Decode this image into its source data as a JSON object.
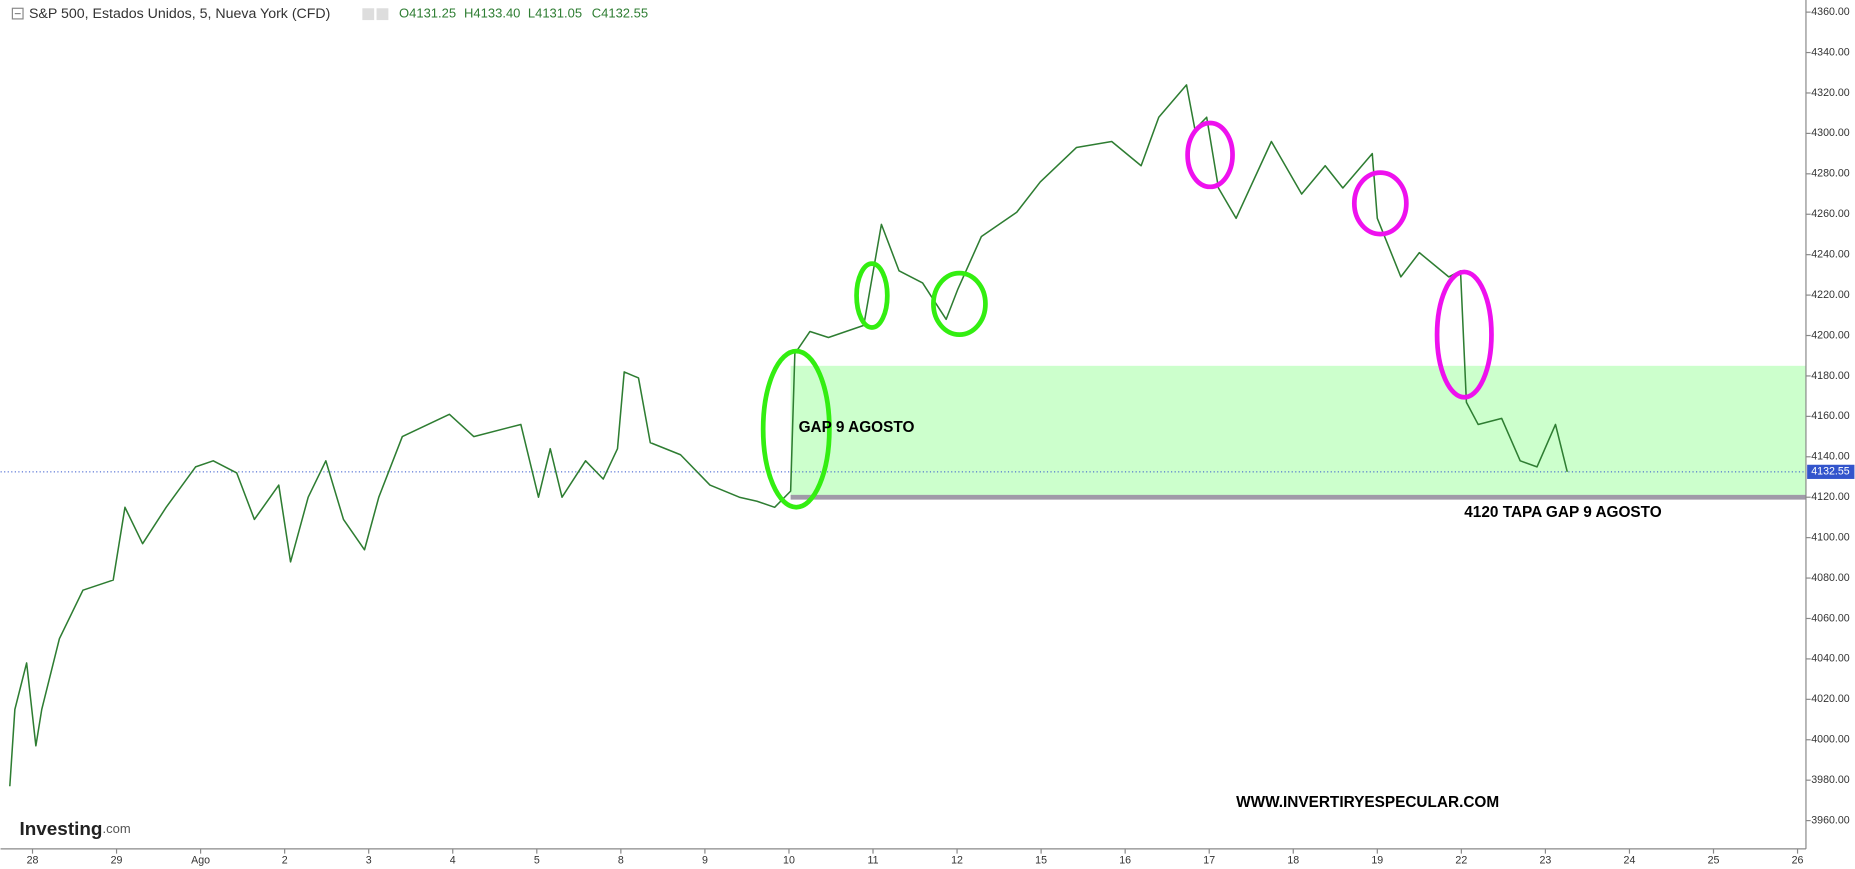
{
  "chart_data": {
    "type": "line",
    "title": "S&P 500, Estados Unidos, 5, Nueva York (CFD)",
    "ohlc": [
      "O4131.25",
      "H4133.40",
      "L4131.05",
      "C4132.55"
    ],
    "color": "#2e7d32",
    "x": [
      -0.27,
      -0.21,
      -0.07,
      0.04,
      0.11,
      0.32,
      0.6,
      0.96,
      1.1,
      1.31,
      1.59,
      1.94,
      2.15,
      2.43,
      2.64,
      2.93,
      3.07,
      3.28,
      3.49,
      3.7,
      3.95,
      4.12,
      4.4,
      4.96,
      5.25,
      5.81,
      6.02,
      6.16,
      6.3,
      6.58,
      6.79,
      6.96,
      7.04,
      7.21,
      7.35,
      7.71,
      8.06,
      8.41,
      8.62,
      8.83,
      9.02,
      9.07,
      9.25,
      9.47,
      9.89,
      10.1,
      10.31,
      10.59,
      10.87,
      11.01,
      11.29,
      11.71,
      11.99,
      12.42,
      12.84,
      13.19,
      13.4,
      13.73,
      13.83,
      13.97,
      14.11,
      14.32,
      14.74,
      15.1,
      15.38,
      15.59,
      15.94,
      16.0,
      16.28,
      16.5,
      16.85,
      16.99,
      17.06,
      17.2,
      17.48,
      17.7,
      17.9,
      18.12,
      18.26
    ],
    "values": [
      3977,
      4015,
      4038,
      3997,
      4015,
      4050,
      4074,
      4079,
      4115,
      4097,
      4115,
      4135,
      4138,
      4132,
      4109,
      4126,
      4088,
      4120,
      4138,
      4109,
      4094,
      4120,
      4150,
      4161,
      4150,
      4156,
      4120,
      4144,
      4120,
      4138,
      4129,
      4144,
      4182,
      4179,
      4147,
      4141,
      4126,
      4120,
      4118,
      4115,
      4123,
      4191,
      4202,
      4199,
      4205,
      4255,
      4232,
      4226,
      4208,
      4223,
      4249,
      4261,
      4276,
      4293,
      4296,
      4284,
      4308,
      4324,
      4302,
      4308,
      4273,
      4258,
      4296,
      4270,
      4284,
      4273,
      4290,
      4258,
      4229,
      4241,
      4229,
      4232,
      4167,
      4156,
      4159,
      4138,
      4135,
      4156,
      4132.55
    ],
    "xlim": [
      -0.38,
      21.1
    ],
    "xticks": [
      {
        "value": 0,
        "label": "28"
      },
      {
        "value": 1,
        "label": "29"
      },
      {
        "value": 2,
        "label": "Ago"
      },
      {
        "value": 3,
        "label": "2"
      },
      {
        "value": 4,
        "label": "3"
      },
      {
        "value": 5,
        "label": "4"
      },
      {
        "value": 6,
        "label": "5"
      },
      {
        "value": 7,
        "label": "8"
      },
      {
        "value": 8,
        "label": "9"
      },
      {
        "value": 9,
        "label": "10"
      },
      {
        "value": 10,
        "label": "11"
      },
      {
        "value": 11,
        "label": "12"
      },
      {
        "value": 12,
        "label": "15"
      },
      {
        "value": 13,
        "label": "16"
      },
      {
        "value": 14,
        "label": "17"
      },
      {
        "value": 15,
        "label": "18"
      },
      {
        "value": 16,
        "label": "19"
      },
      {
        "value": 17,
        "label": "22"
      },
      {
        "value": 18,
        "label": "23"
      },
      {
        "value": 19,
        "label": "24"
      },
      {
        "value": 20,
        "label": "25"
      },
      {
        "value": 21,
        "label": "26"
      }
    ],
    "ylim": [
      3946,
      4366
    ],
    "yticks": [
      {
        "value": 3960,
        "label": "3960.00"
      },
      {
        "value": 3980,
        "label": "3980.00"
      },
      {
        "value": 4000,
        "label": "4000.00"
      },
      {
        "value": 4020,
        "label": "4020.00"
      },
      {
        "value": 4040,
        "label": "4040.00"
      },
      {
        "value": 4060,
        "label": "4060.00"
      },
      {
        "value": 4080,
        "label": "4080.00"
      },
      {
        "value": 4100,
        "label": "4100.00"
      },
      {
        "value": 4120,
        "label": "4120.00"
      },
      {
        "value": 4140,
        "label": "4140.00"
      },
      {
        "value": 4160,
        "label": "4160.00"
      },
      {
        "value": 4180,
        "label": "4180.00"
      },
      {
        "value": 4200,
        "label": "4200.00"
      },
      {
        "value": 4220,
        "label": "4220.00"
      },
      {
        "value": 4240,
        "label": "4240.00"
      },
      {
        "value": 4260,
        "label": "4260.00"
      },
      {
        "value": 4280,
        "label": "4280.00"
      },
      {
        "value": 4300,
        "label": "4300.00"
      },
      {
        "value": 4320,
        "label": "4320.00"
      },
      {
        "value": 4340,
        "label": "4340.00"
      },
      {
        "value": 4360,
        "label": "4360.00"
      }
    ],
    "last_price": 4132.55,
    "gap_zone": [
      4120,
      4185
    ],
    "gap_start": 9.02,
    "level": 4120,
    "annotations": [
      "GAP 9 AGOSTO",
      "4120 TAPA GAP 9 AGOSTO"
    ],
    "watermark": "WWW.INVERTIRYESPECULAR.COM",
    "logo": "Investing",
    "logo_suffix": ".com"
  }
}
